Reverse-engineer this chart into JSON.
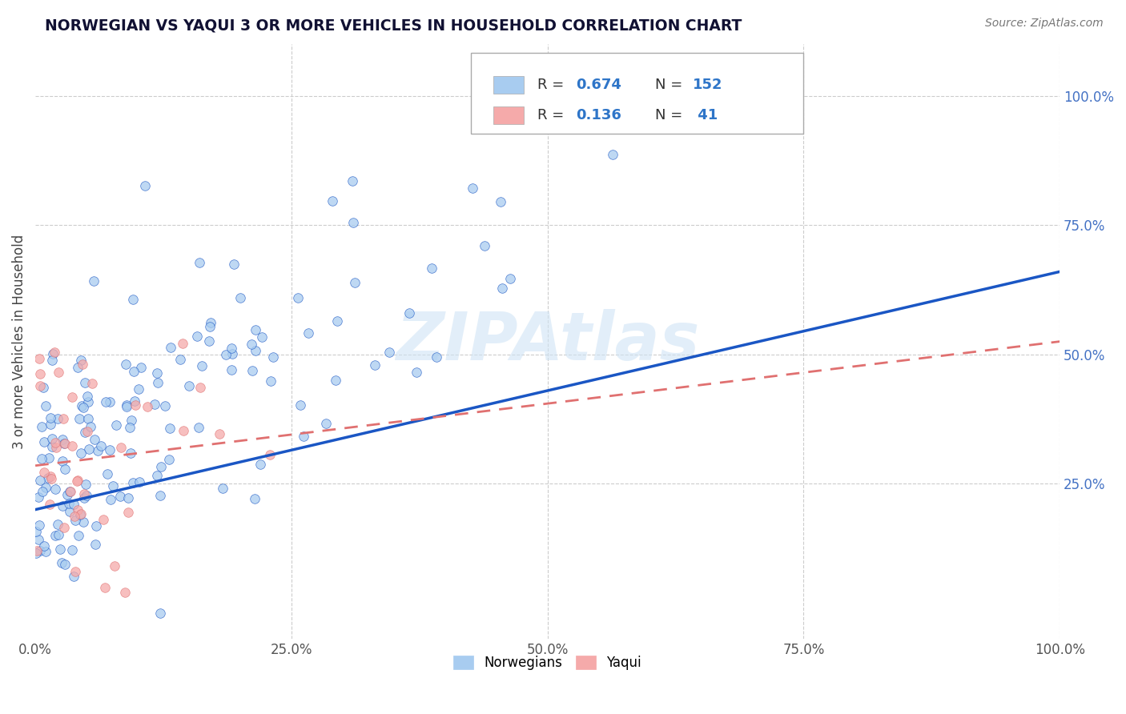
{
  "title": "NORWEGIAN VS YAQUI 3 OR MORE VEHICLES IN HOUSEHOLD CORRELATION CHART",
  "source": "Source: ZipAtlas.com",
  "xlabel": "",
  "ylabel": "3 or more Vehicles in Household",
  "xlim": [
    0.0,
    1.0
  ],
  "ylim": [
    -0.05,
    1.1
  ],
  "x_tick_labels": [
    "0.0%",
    "25.0%",
    "50.0%",
    "75.0%",
    "100.0%"
  ],
  "x_tick_positions": [
    0.0,
    0.25,
    0.5,
    0.75,
    1.0
  ],
  "y_tick_labels": [
    "25.0%",
    "50.0%",
    "75.0%",
    "100.0%"
  ],
  "y_tick_positions": [
    0.25,
    0.5,
    0.75,
    1.0
  ],
  "norwegian_color": "#A8CCF0",
  "yaqui_color": "#F5AAAA",
  "norwegian_line_color": "#1A56C4",
  "yaqui_line_color": "#E07070",
  "background_color": "#FFFFFF",
  "watermark": "ZIPAtlas",
  "legend_R_norwegian": "0.674",
  "legend_N_norwegian": "152",
  "legend_R_yaqui": "0.136",
  "legend_N_yaqui": "41",
  "norwegian_seed": 42,
  "yaqui_seed": 7,
  "norwegian_R": 0.674,
  "norwegian_N": 152,
  "yaqui_R": 0.136,
  "yaqui_N": 41,
  "nor_line_x0": 0.0,
  "nor_line_y0": 0.2,
  "nor_line_x1": 1.0,
  "nor_line_y1": 0.66,
  "yaq_line_x0": 0.0,
  "yaq_line_y0": 0.285,
  "yaq_line_x1": 1.0,
  "yaq_line_y1": 0.525
}
